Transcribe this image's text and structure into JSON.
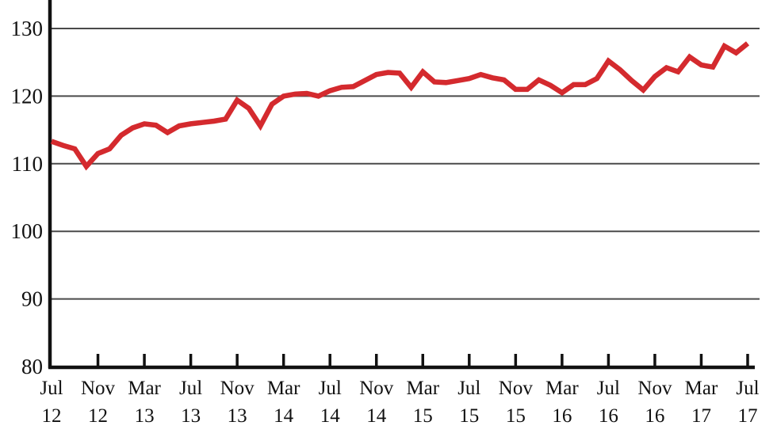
{
  "colors": {
    "line": "#d42a2e",
    "axis": "#111111",
    "grid": "#4a4a4a",
    "background": "#ffffff",
    "text": "#111111"
  },
  "chart_data": {
    "type": "line",
    "title": "",
    "xlabel": "",
    "ylabel": "",
    "grid": "horizontal-only",
    "legend": "none",
    "ylim": [
      80,
      133
    ],
    "y_ticks": [
      80,
      90,
      100,
      110,
      120,
      130
    ],
    "x_start": "Jul 2012",
    "x_end": "Jul 2017",
    "x_frequency": "monthly",
    "x_ticks": [
      {
        "m": "Jul",
        "y": "12"
      },
      {
        "m": "Nov",
        "y": "12"
      },
      {
        "m": "Mar",
        "y": "13"
      },
      {
        "m": "Jul",
        "y": "13"
      },
      {
        "m": "Nov",
        "y": "13"
      },
      {
        "m": "Mar",
        "y": "14"
      },
      {
        "m": "Jul",
        "y": "14"
      },
      {
        "m": "Nov",
        "y": "14"
      },
      {
        "m": "Mar",
        "y": "15"
      },
      {
        "m": "Jul",
        "y": "15"
      },
      {
        "m": "Nov",
        "y": "15"
      },
      {
        "m": "Mar",
        "y": "16"
      },
      {
        "m": "Jul",
        "y": "16"
      },
      {
        "m": "Nov",
        "y": "16"
      },
      {
        "m": "Mar",
        "y": "17"
      },
      {
        "m": "Jul",
        "y": "17"
      }
    ],
    "series": [
      {
        "name": "index-line",
        "color": "#d42a2e",
        "values": [
          113.3,
          112.7,
          112.2,
          109.6,
          111.5,
          112.2,
          114.2,
          115.3,
          115.9,
          115.7,
          114.6,
          115.6,
          115.9,
          116.1,
          116.3,
          116.6,
          119.4,
          118.2,
          115.6,
          118.8,
          120.0,
          120.3,
          120.4,
          120.0,
          120.8,
          121.3,
          121.4,
          122.3,
          123.2,
          123.5,
          123.4,
          121.3,
          123.6,
          122.1,
          122.0,
          122.3,
          122.6,
          123.2,
          122.7,
          122.4,
          121.0,
          121.0,
          122.4,
          121.6,
          120.5,
          121.7,
          121.7,
          122.6,
          125.2,
          123.9,
          122.3,
          120.9,
          122.9,
          124.2,
          123.6,
          125.8,
          124.6,
          124.3,
          127.4,
          126.4,
          127.8
        ]
      }
    ]
  }
}
